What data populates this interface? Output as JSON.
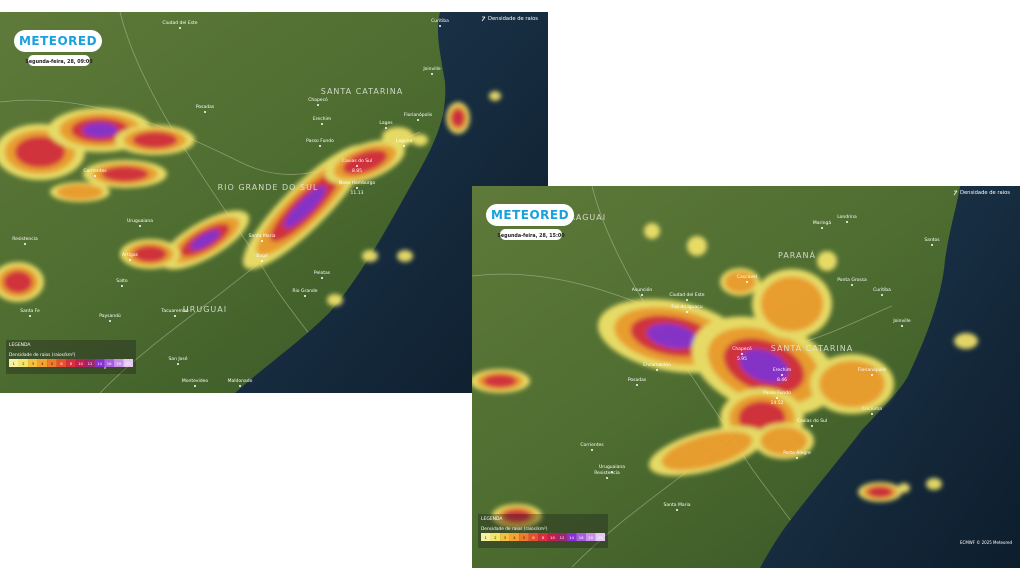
{
  "panels": [
    {
      "logo": "METEORED",
      "timestamp": "Segunda-feira, 28, 09:00",
      "layer_label": "Densidade de raios",
      "legend": {
        "heading": "LEGENDA",
        "title": "Densidade de raios (raios/km²)",
        "scale": [
          1,
          2,
          3,
          4,
          5,
          6,
          8,
          10,
          12,
          14,
          16,
          20,
          25
        ]
      },
      "regions": [
        "SANTA CATARINA",
        "RIO GRANDE DO SUL",
        "URUGUAI"
      ],
      "places": [
        {
          "name": "Posadas"
        },
        {
          "name": "Chapecó"
        },
        {
          "name": "Erechim"
        },
        {
          "name": "Passo Fundo"
        },
        {
          "name": "Caxias do Sul",
          "value": 8.85
        },
        {
          "name": "Novo Hamburgo",
          "value": 11.13
        },
        {
          "name": "Florianópolis"
        },
        {
          "name": "Lages"
        },
        {
          "name": "Joinville"
        },
        {
          "name": "Laguna"
        },
        {
          "name": "Santa Maria"
        },
        {
          "name": "Bagé"
        },
        {
          "name": "Pelotas"
        },
        {
          "name": "Rio Grande"
        },
        {
          "name": "Uruguaiana"
        },
        {
          "name": "Paysandú"
        },
        {
          "name": "Salto"
        },
        {
          "name": "Tacuarembó"
        },
        {
          "name": "Artigas"
        },
        {
          "name": "Montevideo"
        },
        {
          "name": "Maldonado"
        },
        {
          "name": "San José"
        },
        {
          "name": "Mercedes"
        },
        {
          "name": "Resistencia"
        },
        {
          "name": "Santa Fe"
        },
        {
          "name": "Corrientes"
        },
        {
          "name": "Curitiba"
        },
        {
          "name": "Ciudad del Este"
        }
      ]
    },
    {
      "logo": "METEORED",
      "timestamp": "Segunda-feira, 28, 15:00",
      "layer_label": "Densidade de raios",
      "legend": {
        "heading": "LEGENDA",
        "title": "Densidade de raios (raios/km²)",
        "scale": [
          1,
          2,
          3,
          4,
          5,
          6,
          8,
          10,
          12,
          14,
          16,
          20,
          25
        ]
      },
      "regions": [
        "PARANÁ",
        "SANTA CATARINA",
        "PARAGUAI"
      ],
      "places": [
        {
          "name": "Asunción"
        },
        {
          "name": "Ciudad del Este"
        },
        {
          "name": "Foz do Iguaçu"
        },
        {
          "name": "Cascavel"
        },
        {
          "name": "Chapecó",
          "value": 5.95
        },
        {
          "name": "Erechim",
          "value": 8.46
        },
        {
          "name": "Passo Fundo",
          "value": 14.52
        },
        {
          "name": "Caxias do Sul"
        },
        {
          "name": "Porto Alegre"
        },
        {
          "name": "Florianópolis"
        },
        {
          "name": "Criciúma"
        },
        {
          "name": "Joinville"
        },
        {
          "name": "Curitiba"
        },
        {
          "name": "Ponta Grossa"
        },
        {
          "name": "Maringá"
        },
        {
          "name": "Londrina"
        },
        {
          "name": "Santos"
        },
        {
          "name": "Encarnación"
        },
        {
          "name": "Posadas"
        },
        {
          "name": "Corrientes"
        },
        {
          "name": "Resistencia"
        },
        {
          "name": "Uruguaiana"
        },
        {
          "name": "Santa Maria"
        }
      ],
      "copyright": "ECMWF © 2025 Meteored"
    }
  ]
}
